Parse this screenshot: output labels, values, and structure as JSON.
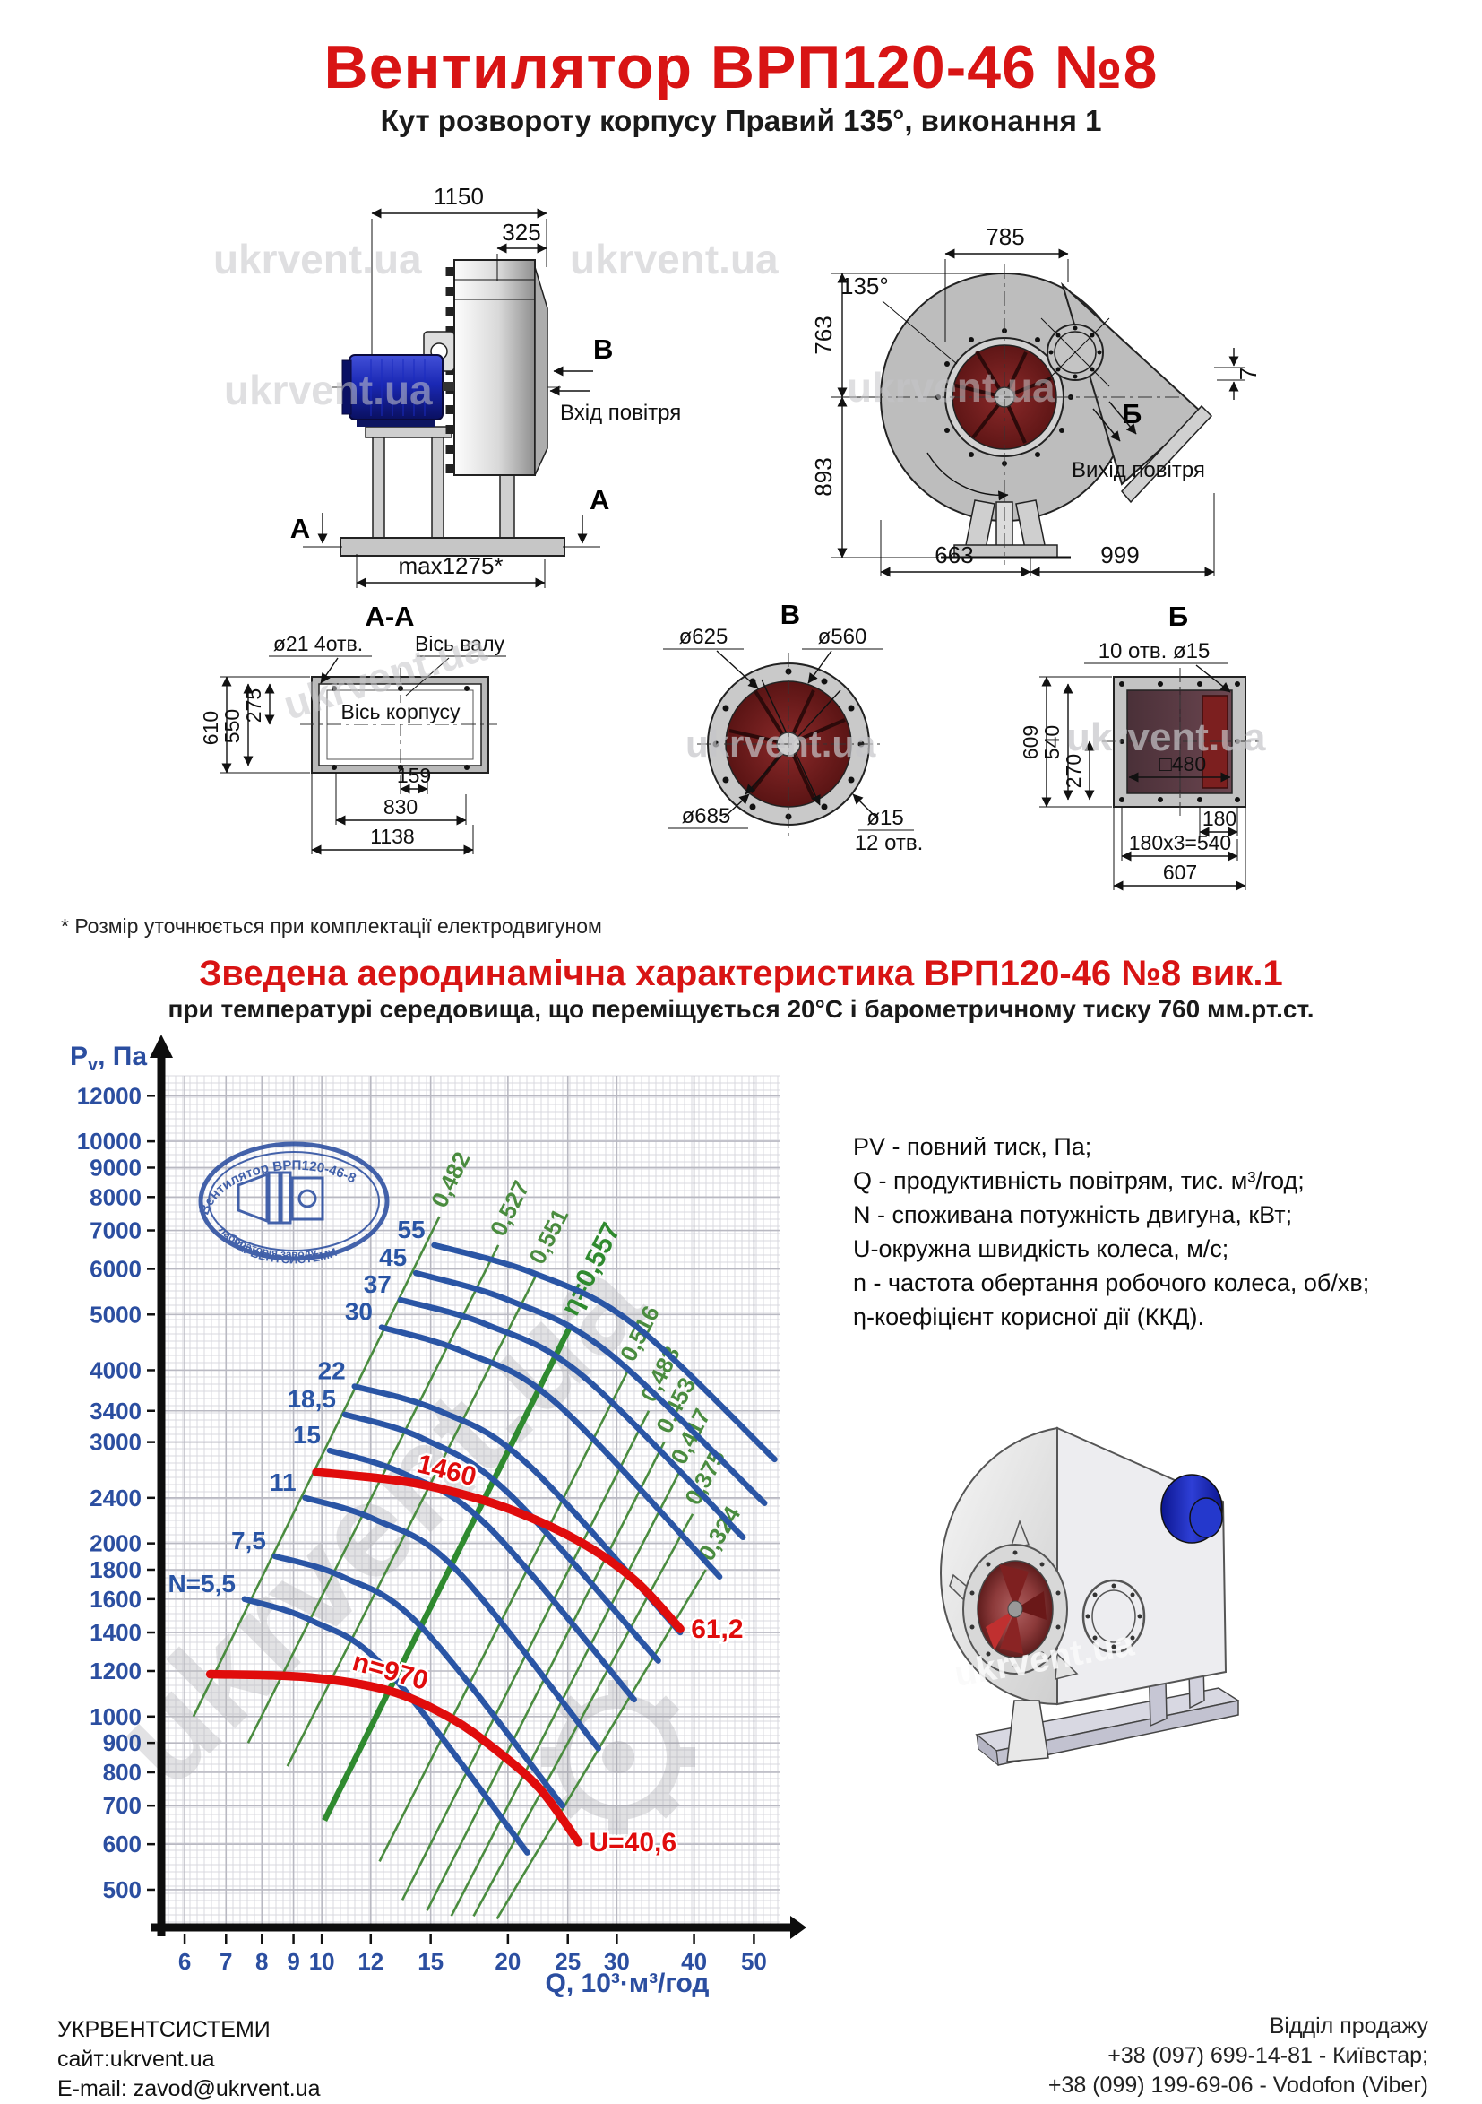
{
  "header": {
    "title": "Вентилятор  ВРП120-46 №8",
    "subtitle": "Кут розвороту корпусу Правий 135°, виконання 1"
  },
  "watermark": "ukrvent.ua",
  "drawings": {
    "side_view": {
      "dim_total_width": "1150",
      "dim_inlet": "325",
      "dim_base": "max1275*",
      "section_a": "А",
      "view_v": "В",
      "inlet_text": "Вхід повітря"
    },
    "front_view": {
      "dim_top": "785",
      "angle": "135°",
      "dim_left_top": "763",
      "dim_left_bottom": "893",
      "dim_right": "7",
      "view_b": "Б",
      "outlet_text": "Вихід повітря",
      "dim_bottom_left": "663",
      "dim_bottom_right": "999"
    },
    "section_aa": {
      "title": "А-А",
      "holes_label": "ø21 4отв.",
      "shaft_axis": "Вісь валу",
      "body_axis": "Вісь корпусу",
      "dim_h_outer": "610",
      "dim_h_mid": "550",
      "dim_h_top": "275",
      "dim_w_small": "159",
      "dim_w_mid": "830",
      "dim_w_outer": "1138"
    },
    "section_v": {
      "title": "В",
      "dim_bolt_circle": "ø625",
      "dim_inner": "ø560",
      "dim_outer": "ø685",
      "dim_holes": "ø15",
      "holes_count": "12 отв."
    },
    "section_b": {
      "title": "Б",
      "holes_label": "10 отв. ø15",
      "dim_h_outer": "609",
      "dim_h_mid": "540",
      "dim_h_half": "270",
      "dim_inner": "□480",
      "dim_pitch": "180",
      "dim_pitch_total": "180x3=540",
      "dim_w_outer": "607"
    }
  },
  "footnote": "* Розмір уточнюється при комплектації електродвигуном",
  "chart_header": {
    "title": "Зведена аеродинамічна характеристика ВРП120-46 №8 вик.1",
    "subtitle": "при температурі середовища, що переміщується 20°С і барометричному тиску 760 мм.рт.ст."
  },
  "stamp": {
    "arc_top": "Вентилятор ВРП120-46-8",
    "arc_bottom1": "лабораторія заводу",
    "arc_bottom2": "УКРВЕНТСИСТЕМИ"
  },
  "legend": {
    "items": [
      "PV - повний тиск, Па;",
      "Q - продуктивність повітрям, тис. м³/год;",
      "N - споживана потужність двигуна, кВт;",
      "U-окружна швидкість колеса, м/с;",
      "n - частота обертання робочого колеса, об/хв;",
      "η-коефіцієнт корисної дії (ККД)."
    ]
  },
  "chart_data": {
    "type": "line",
    "title": "Зведена аеродинамічна характеристика ВРП120-46 №8 вик.1",
    "xlabel": "Q, 10³·м³/год",
    "ylabel": "Pv, Па",
    "x_scale": "log",
    "y_scale": "log",
    "xlim": [
      5.5,
      55
    ],
    "ylim": [
      430,
      13000
    ],
    "grid": true,
    "x_ticks": [
      6,
      7,
      8,
      9,
      10,
      12,
      15,
      20,
      25,
      30,
      40,
      50
    ],
    "y_ticks": [
      500,
      600,
      700,
      800,
      900,
      1000,
      1200,
      1400,
      1600,
      1800,
      2000,
      2400,
      3000,
      3400,
      4000,
      5000,
      6000,
      7000,
      8000,
      9000,
      10000,
      12000
    ],
    "power_curves_kW": [
      {
        "label": "55",
        "points": [
          [
            15.2,
            6600
          ],
          [
            22,
            5900
          ],
          [
            32,
            4800
          ],
          [
            54,
            2800
          ]
        ]
      },
      {
        "label": "45",
        "points": [
          [
            14.2,
            5900
          ],
          [
            20,
            5300
          ],
          [
            29,
            4300
          ],
          [
            52,
            2350
          ]
        ]
      },
      {
        "label": "37",
        "points": [
          [
            13.4,
            5300
          ],
          [
            18.5,
            4800
          ],
          [
            26.5,
            3900
          ],
          [
            48,
            2050
          ]
        ]
      },
      {
        "label": "30",
        "points": [
          [
            12.5,
            4750
          ],
          [
            17,
            4300
          ],
          [
            24,
            3500
          ],
          [
            44,
            1750
          ]
        ]
      },
      {
        "label": "22",
        "points": [
          [
            11.3,
            3750
          ],
          [
            15.5,
            3400
          ],
          [
            21.5,
            2750
          ],
          [
            38,
            1400
          ]
        ]
      },
      {
        "label": "18,5",
        "points": [
          [
            10.9,
            3350
          ],
          [
            14.5,
            3050
          ],
          [
            20,
            2450
          ],
          [
            35,
            1250
          ]
        ]
      },
      {
        "label": "15",
        "points": [
          [
            10.3,
            2900
          ],
          [
            13.5,
            2650
          ],
          [
            18.5,
            2150
          ],
          [
            32,
            1070
          ]
        ]
      },
      {
        "label": "11",
        "points": [
          [
            9.4,
            2400
          ],
          [
            12.2,
            2200
          ],
          [
            16.5,
            1800
          ],
          [
            28,
            880
          ]
        ]
      },
      {
        "label": "7,5",
        "points": [
          [
            8.4,
            1900
          ],
          [
            10.8,
            1750
          ],
          [
            14.5,
            1430
          ],
          [
            24.5,
            700
          ]
        ]
      },
      {
        "label": "N=5,5",
        "points": [
          [
            7.5,
            1600
          ],
          [
            9.6,
            1470
          ],
          [
            12.8,
            1200
          ],
          [
            21.5,
            580
          ]
        ]
      }
    ],
    "efficiency_lines": [
      {
        "label": "0,482",
        "bold": false,
        "points": [
          [
            6.2,
            1000
          ],
          [
            15.5,
            7400
          ]
        ]
      },
      {
        "label": "0,527",
        "bold": false,
        "points": [
          [
            7.6,
            900
          ],
          [
            19.3,
            6600
          ]
        ]
      },
      {
        "label": "0,551",
        "bold": false,
        "points": [
          [
            8.8,
            820
          ],
          [
            22.3,
            5900
          ]
        ]
      },
      {
        "label": "η=0,557",
        "bold": true,
        "points": [
          [
            10.1,
            660
          ],
          [
            25.3,
            4800
          ]
        ]
      },
      {
        "label": "0,516",
        "bold": false,
        "points": [
          [
            12.4,
            560
          ],
          [
            31.3,
            4000
          ]
        ]
      },
      {
        "label": "0,483",
        "bold": false,
        "points": [
          [
            13.5,
            480
          ],
          [
            33.8,
            3400
          ]
        ]
      },
      {
        "label": "0,453",
        "bold": false,
        "points": [
          [
            14.8,
            460
          ],
          [
            35.8,
            3000
          ]
        ]
      },
      {
        "label": "0,417",
        "bold": false,
        "points": [
          [
            16.2,
            450
          ],
          [
            37.8,
            2650
          ]
        ]
      },
      {
        "label": "0,375",
        "bold": false,
        "points": [
          [
            17.6,
            450
          ],
          [
            39.8,
            2250
          ]
        ]
      },
      {
        "label": "0,324",
        "bold": false,
        "points": [
          [
            19.2,
            445
          ],
          [
            41.8,
            1800
          ]
        ]
      }
    ],
    "speed_curves": [
      {
        "label": "1460",
        "label_point_index": 2,
        "tip_label": "61,2",
        "points": [
          [
            9.8,
            2660
          ],
          [
            13,
            2580
          ],
          [
            15.8,
            2480
          ],
          [
            20,
            2300
          ],
          [
            26,
            2020
          ],
          [
            32,
            1730
          ],
          [
            38,
            1420
          ]
        ]
      },
      {
        "label": "n=970",
        "label_point_index": 2,
        "tip_label": "U=40,6",
        "points": [
          [
            6.6,
            1185
          ],
          [
            9.5,
            1170
          ],
          [
            12.8,
            1110
          ],
          [
            16,
            1000
          ],
          [
            19,
            880
          ],
          [
            22.5,
            750
          ],
          [
            26,
            605
          ]
        ]
      }
    ]
  },
  "footer": {
    "company": "УКРВЕНТСИСТЕМИ",
    "site": "сайт:ukrvent.ua",
    "email": "E-mail: zavod@ukrvent.ua",
    "sales": "Відділ продажу",
    "phone1": "+38 (097) 699-14-81 - Київстар;",
    "phone2": "+38 (099) 199-69-06 - Vodofon (Viber)"
  }
}
